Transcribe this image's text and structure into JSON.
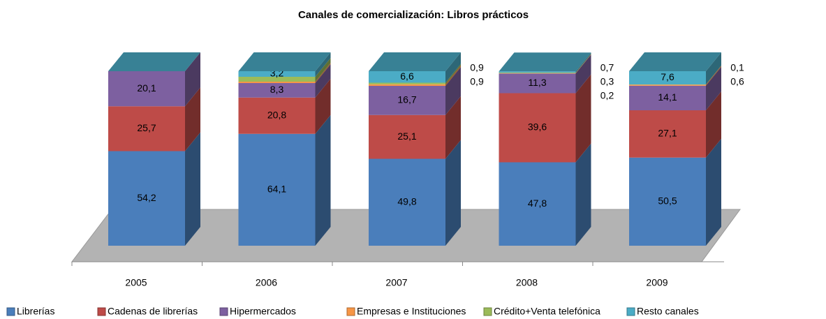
{
  "chart_data": {
    "type": "bar3d_stacked",
    "title": "Canales de comercialización: Libros prácticos",
    "categories": [
      "2005",
      "2006",
      "2007",
      "2008",
      "2009"
    ],
    "ylim": [
      0,
      100
    ],
    "series": [
      {
        "name": "Librerías",
        "color": "#4a7ebb",
        "values": [
          54.2,
          64.1,
          49.8,
          47.8,
          50.5
        ],
        "value_labels": [
          "54,2",
          "64,1",
          "49,8",
          "47,8",
          "50,5"
        ]
      },
      {
        "name": "Cadenas de librerías",
        "color": "#be4b48",
        "values": [
          25.7,
          20.8,
          25.1,
          39.6,
          27.1
        ],
        "value_labels": [
          "25,7",
          "20,8",
          "25,1",
          "39,6",
          "27,1"
        ]
      },
      {
        "name": "Hipermercados",
        "color": "#7d60a0",
        "values": [
          20.1,
          8.3,
          16.7,
          11.3,
          14.1
        ],
        "value_labels": [
          "20,1",
          "8,3",
          "16,7",
          "11,3",
          "14,1"
        ]
      },
      {
        "name": "Empresas e Instituciones",
        "color": "#f79646",
        "values": [
          0,
          0.8,
          0.9,
          0.2,
          0.6
        ],
        "value_labels": [
          null,
          null,
          "0,9",
          "0,2",
          "0,6"
        ]
      },
      {
        "name": "Crédito+Venta telefónica",
        "color": "#9bbb59",
        "values": [
          0,
          2.8,
          0.9,
          0.3,
          0.1
        ],
        "value_labels": [
          null,
          null,
          "0,9",
          "0,3",
          "0,1"
        ]
      },
      {
        "name": "Resto canales",
        "color": "#4bacc6",
        "values": [
          0,
          3.2,
          6.6,
          0.7,
          7.6
        ],
        "value_labels": [
          null,
          "3,2",
          "6,6",
          "0,7",
          "7,6"
        ]
      }
    ]
  }
}
